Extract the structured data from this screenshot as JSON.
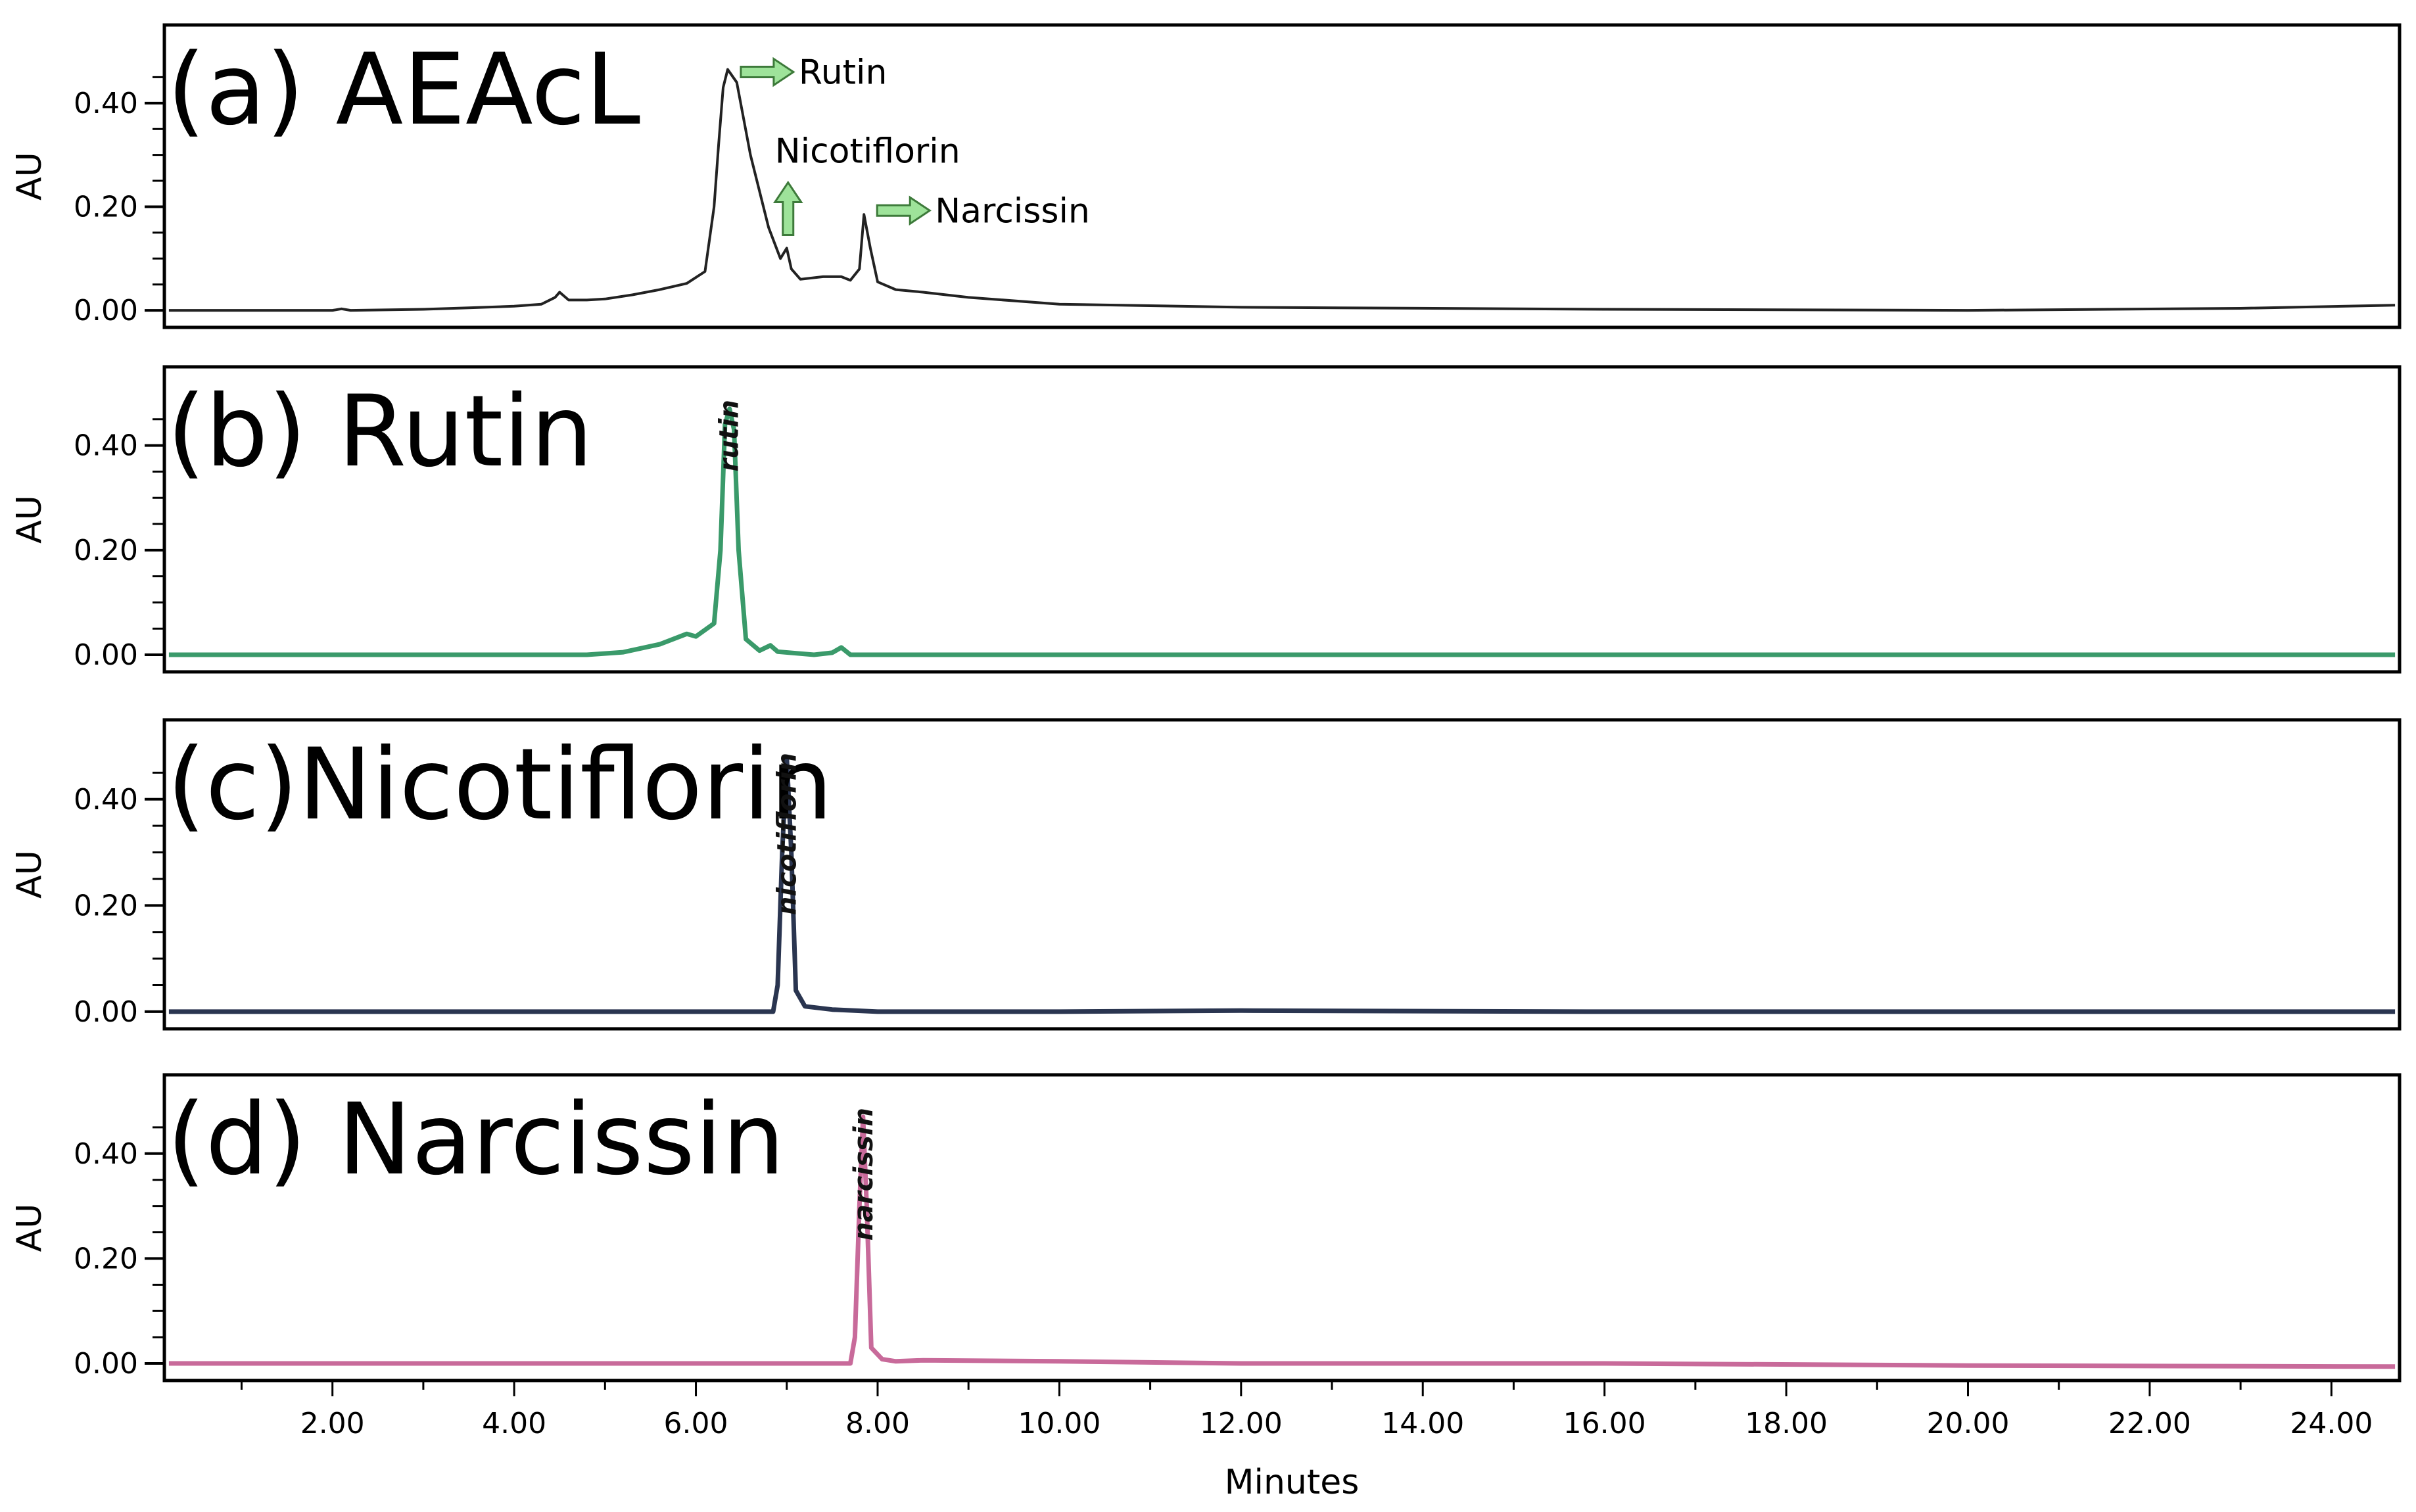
{
  "chart_data": {
    "type": "line",
    "panels": [
      {
        "title": "(a) AEAcL",
        "ylabel": "AU",
        "ylim": [
          -0.01,
          0.5
        ],
        "yticks": [
          "0.00",
          "0.20",
          "0.40"
        ],
        "color": "#222222",
        "series": [
          {
            "points": [
              [
                0.2,
                0.0
              ],
              [
                2.0,
                0.0
              ],
              [
                2.1,
                0.003
              ],
              [
                2.2,
                0.0
              ],
              [
                3.0,
                0.002
              ],
              [
                3.5,
                0.005
              ],
              [
                4.0,
                0.008
              ],
              [
                4.3,
                0.012
              ],
              [
                4.45,
                0.025
              ],
              [
                4.5,
                0.035
              ],
              [
                4.6,
                0.02
              ],
              [
                4.8,
                0.02
              ],
              [
                5.0,
                0.022
              ],
              [
                5.3,
                0.03
              ],
              [
                5.6,
                0.04
              ],
              [
                5.9,
                0.052
              ],
              [
                6.1,
                0.075
              ],
              [
                6.2,
                0.2
              ],
              [
                6.25,
                0.32
              ],
              [
                6.3,
                0.43
              ],
              [
                6.35,
                0.465
              ],
              [
                6.45,
                0.44
              ],
              [
                6.6,
                0.3
              ],
              [
                6.8,
                0.16
              ],
              [
                6.93,
                0.1
              ],
              [
                7.0,
                0.12
              ],
              [
                7.05,
                0.08
              ],
              [
                7.15,
                0.06
              ],
              [
                7.4,
                0.065
              ],
              [
                7.6,
                0.065
              ],
              [
                7.7,
                0.058
              ],
              [
                7.8,
                0.08
              ],
              [
                7.85,
                0.185
              ],
              [
                7.92,
                0.12
              ],
              [
                8.0,
                0.055
              ],
              [
                8.2,
                0.04
              ],
              [
                8.5,
                0.035
              ],
              [
                9.0,
                0.025
              ],
              [
                10.0,
                0.012
              ],
              [
                12.0,
                0.006
              ],
              [
                16.0,
                0.002
              ],
              [
                20.0,
                0.0
              ],
              [
                23.0,
                0.004
              ],
              [
                24.7,
                0.01
              ]
            ]
          }
        ],
        "annotations": [
          {
            "text": "Rutin",
            "x": 6.35,
            "y": 0.46
          },
          {
            "text": "Nicotiflorin",
            "x": 7.0,
            "y": 0.12
          },
          {
            "text": "Narcissin",
            "x": 7.85,
            "y": 0.185
          }
        ]
      },
      {
        "title": "(b) Rutin",
        "ylabel": "AU",
        "ylim": [
          -0.01,
          0.5
        ],
        "yticks": [
          "0.00",
          "0.20",
          "0.40"
        ],
        "color": "#3a9a6a",
        "peak_label": {
          "text": "rutin",
          "x": 6.36
        },
        "series": [
          {
            "points": [
              [
                0.2,
                0.0
              ],
              [
                4.8,
                0.0
              ],
              [
                5.2,
                0.005
              ],
              [
                5.6,
                0.02
              ],
              [
                5.9,
                0.04
              ],
              [
                6.0,
                0.035
              ],
              [
                6.2,
                0.06
              ],
              [
                6.27,
                0.2
              ],
              [
                6.32,
                0.44
              ],
              [
                6.37,
                0.47
              ],
              [
                6.42,
                0.43
              ],
              [
                6.47,
                0.2
              ],
              [
                6.55,
                0.03
              ],
              [
                6.7,
                0.008
              ],
              [
                6.82,
                0.018
              ],
              [
                6.9,
                0.006
              ],
              [
                7.3,
                0.0
              ],
              [
                7.5,
                0.004
              ],
              [
                7.6,
                0.014
              ],
              [
                7.7,
                0.0
              ],
              [
                24.7,
                0.0
              ]
            ]
          }
        ]
      },
      {
        "title": "(c)Nicotiflorin",
        "ylabel": "AU",
        "ylim": [
          -0.01,
          0.5
        ],
        "yticks": [
          "0.00",
          "0.20",
          "0.40"
        ],
        "color": "#2a3550",
        "peak_label": {
          "text": "nicotiflorin",
          "x": 7.0
        },
        "series": [
          {
            "points": [
              [
                0.2,
                0.0
              ],
              [
                6.85,
                0.0
              ],
              [
                6.9,
                0.05
              ],
              [
                6.95,
                0.3
              ],
              [
                7.0,
                0.48
              ],
              [
                7.05,
                0.3
              ],
              [
                7.1,
                0.04
              ],
              [
                7.2,
                0.01
              ],
              [
                7.5,
                0.004
              ],
              [
                8.0,
                0.0
              ],
              [
                10.0,
                0.0
              ],
              [
                12.0,
                0.002
              ],
              [
                16.0,
                0.0
              ],
              [
                24.7,
                0.0
              ]
            ]
          }
        ]
      },
      {
        "title": "(d) Narcissin",
        "ylabel": "AU",
        "ylim": [
          -0.01,
          0.5
        ],
        "yticks": [
          "0.00",
          "0.20",
          "0.40"
        ],
        "color": "#c86a9a",
        "peak_label": {
          "text": "narcissin",
          "x": 7.84
        },
        "series": [
          {
            "points": [
              [
                0.2,
                0.0
              ],
              [
                7.7,
                0.0
              ],
              [
                7.75,
                0.05
              ],
              [
                7.8,
                0.3
              ],
              [
                7.84,
                0.47
              ],
              [
                7.88,
                0.3
              ],
              [
                7.93,
                0.03
              ],
              [
                8.05,
                0.008
              ],
              [
                8.2,
                0.004
              ],
              [
                8.5,
                0.006
              ],
              [
                10.0,
                0.004
              ],
              [
                12.0,
                0.0
              ],
              [
                16.0,
                0.0
              ],
              [
                20.0,
                -0.004
              ],
              [
                24.7,
                -0.006
              ]
            ]
          }
        ]
      }
    ],
    "xlabel": "Minutes",
    "xlim": [
      0.15,
      24.75
    ],
    "xticks": [
      "2.00",
      "4.00",
      "6.00",
      "8.00",
      "10.00",
      "12.00",
      "14.00",
      "16.00",
      "18.00",
      "20.00",
      "22.00",
      "24.00"
    ],
    "grid": false
  }
}
